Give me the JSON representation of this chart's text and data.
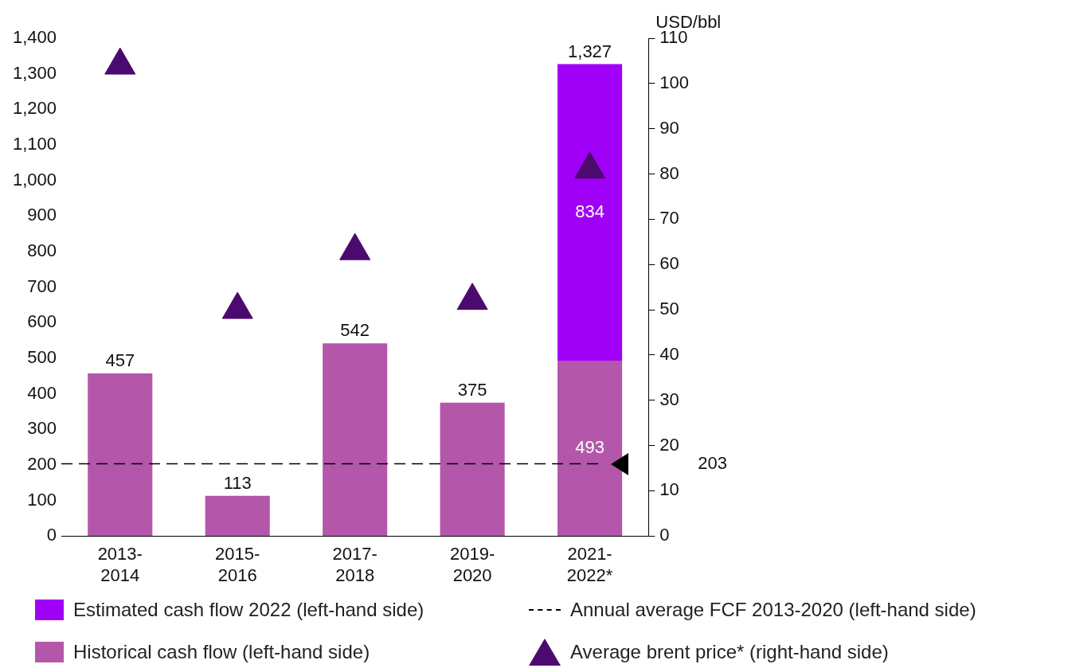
{
  "chart_data": {
    "type": "bar",
    "stacked": true,
    "categories": [
      "2013-\n2014",
      "2015-\n2016",
      "2017-\n2018",
      "2019-\n2020",
      "2021-\n2022*"
    ],
    "series": [
      {
        "name": "Historical cash flow (left-hand side)",
        "color": "#b457aa",
        "values": [
          457,
          113,
          542,
          375,
          493
        ],
        "value_labels": [
          "457",
          "113",
          "542",
          "375",
          "493"
        ]
      },
      {
        "name": "Estimated cash flow 2022 (left-hand side)",
        "color": "#a000f6",
        "values": [
          null,
          null,
          null,
          null,
          834
        ],
        "value_labels": [
          null,
          null,
          null,
          null,
          "834"
        ]
      },
      {
        "name": "Average brent price* (right-hand side)",
        "type": "scatter",
        "axis": "y2",
        "marker": "triangle",
        "color": "#4b0a6e",
        "x": [
          "2013-\n2014",
          "2015-\n2016",
          "2017-\n2018",
          "2019-\n2020",
          "2021-\n2022*"
        ],
        "values": [
          104,
          50,
          63,
          52,
          81
        ]
      }
    ],
    "totals": [
      null,
      null,
      null,
      null,
      "1,327"
    ],
    "ylim": [
      0,
      1400
    ],
    "yticks": [
      0,
      100,
      200,
      300,
      400,
      500,
      600,
      700,
      800,
      900,
      {
        "value": 1000,
        "label": "1,000"
      },
      {
        "value": 1100,
        "label": "1,100"
      },
      {
        "value": 1200,
        "label": "1,200"
      },
      {
        "value": 1300,
        "label": "1,300"
      },
      {
        "value": 1400,
        "label": "1,400"
      }
    ],
    "y2lim": [
      0,
      110
    ],
    "y2ticks": [
      0,
      10,
      20,
      30,
      40,
      50,
      60,
      70,
      80,
      90,
      100,
      110
    ],
    "y2label": "USD/bbl",
    "ref_lines": [
      {
        "axis": "y",
        "value": 203,
        "label": "Annual average FCF 2013-2020 (left-hand side)",
        "color": "#000000",
        "line_style": "dashed"
      }
    ],
    "annotations": [
      "203"
    ],
    "grid": false,
    "legend": "bottom"
  }
}
